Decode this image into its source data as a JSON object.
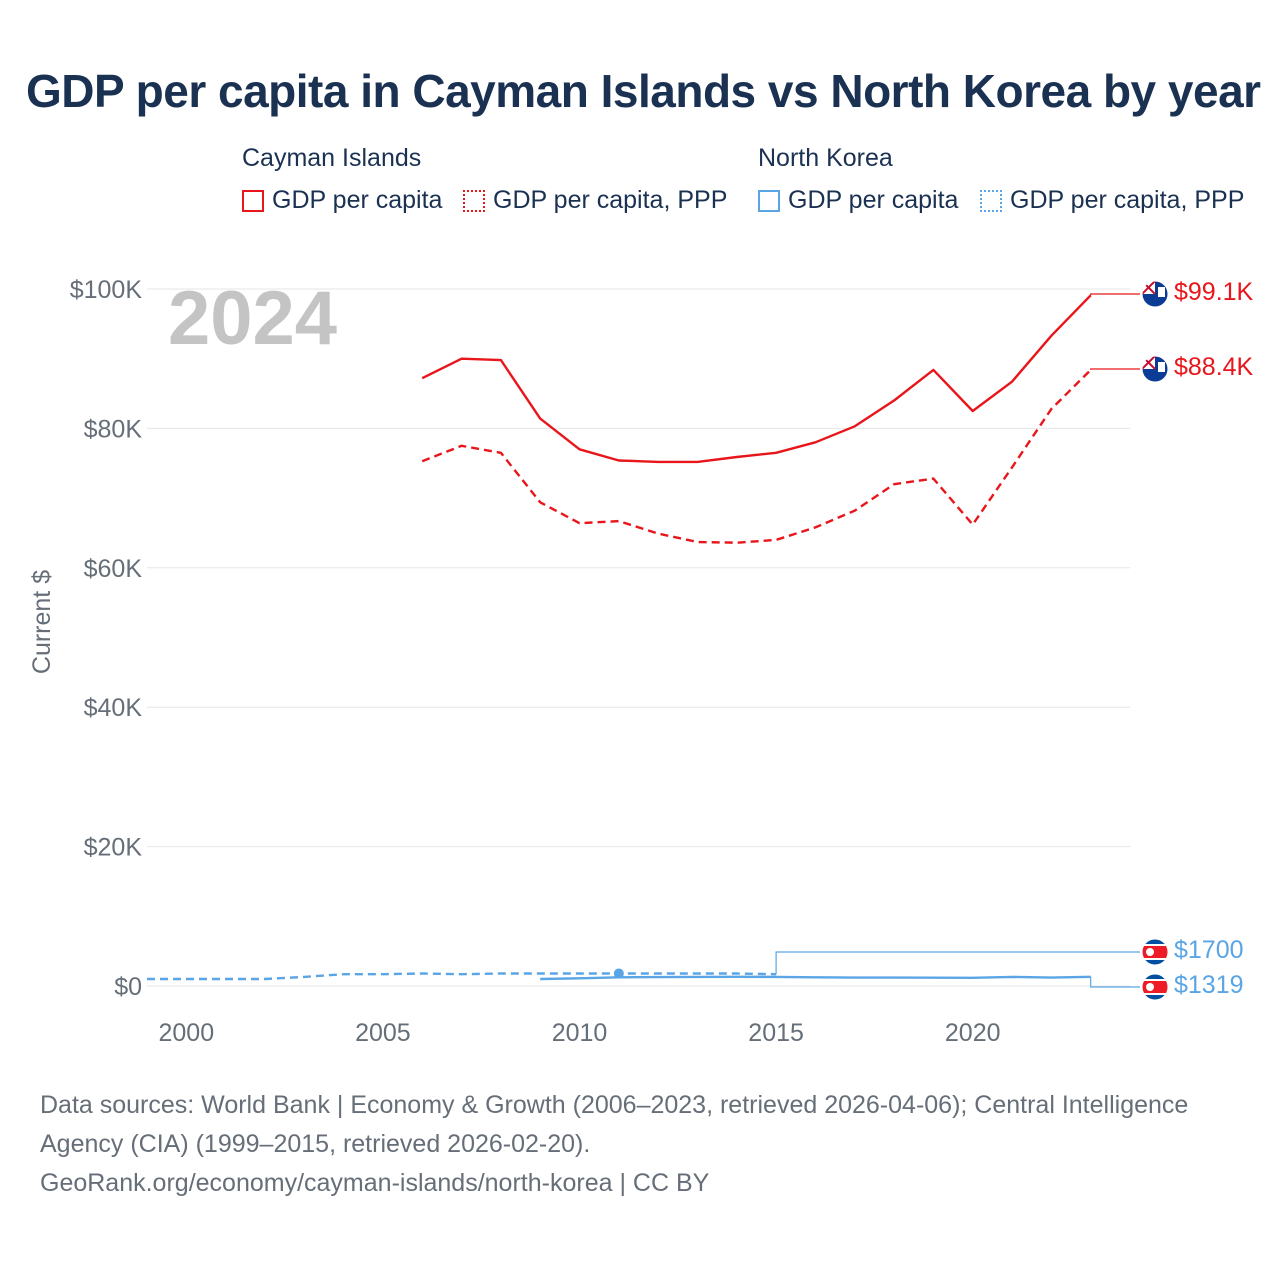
{
  "chart_data": {
    "type": "line",
    "title": "GDP per capita in Cayman Islands vs North Korea by year",
    "year_label": "2024",
    "ylabel": "Current $",
    "xlim": [
      1999,
      2024
    ],
    "ylim": [
      0,
      100000
    ],
    "x_ticks": [
      2000,
      2005,
      2010,
      2015,
      2020
    ],
    "y_ticks": [
      {
        "value": 0,
        "label": "$0"
      },
      {
        "value": 20000,
        "label": "$20K"
      },
      {
        "value": 40000,
        "label": "$40K"
      },
      {
        "value": 60000,
        "label": "$60K"
      },
      {
        "value": 80000,
        "label": "$80K"
      },
      {
        "value": 100000,
        "label": "$100K"
      }
    ],
    "legend": {
      "groups": [
        {
          "country": "Cayman Islands",
          "items": [
            "GDP per capita",
            "GDP per capita, PPP"
          ]
        },
        {
          "country": "North Korea",
          "items": [
            "GDP per capita",
            "GDP per capita, PPP"
          ]
        }
      ]
    },
    "series": [
      {
        "name": "Cayman Islands GDP per capita",
        "color": "#e8161b",
        "dash": false,
        "end_label": "$99.1K",
        "end_value": 99100,
        "points": [
          [
            2006,
            87200
          ],
          [
            2007,
            90000
          ],
          [
            2008,
            89800
          ],
          [
            2009,
            81400
          ],
          [
            2010,
            77000
          ],
          [
            2011,
            75400
          ],
          [
            2012,
            75200
          ],
          [
            2013,
            75200
          ],
          [
            2014,
            75900
          ],
          [
            2015,
            76500
          ],
          [
            2016,
            78000
          ],
          [
            2017,
            80300
          ],
          [
            2018,
            84000
          ],
          [
            2019,
            88400
          ],
          [
            2020,
            82500
          ],
          [
            2021,
            86700
          ],
          [
            2022,
            93300
          ],
          [
            2023,
            99100
          ]
        ]
      },
      {
        "name": "Cayman Islands GDP per capita, PPP",
        "color": "#e8161b",
        "dash": true,
        "end_label": "$88.4K",
        "end_value": 88400,
        "points": [
          [
            2006,
            75300
          ],
          [
            2007,
            77500
          ],
          [
            2008,
            76500
          ],
          [
            2009,
            69400
          ],
          [
            2010,
            66400
          ],
          [
            2011,
            66700
          ],
          [
            2012,
            64900
          ],
          [
            2013,
            63700
          ],
          [
            2014,
            63600
          ],
          [
            2015,
            64000
          ],
          [
            2016,
            65800
          ],
          [
            2017,
            68200
          ],
          [
            2018,
            72000
          ],
          [
            2019,
            72800
          ],
          [
            2020,
            66200
          ],
          [
            2021,
            74400
          ],
          [
            2022,
            82800
          ],
          [
            2023,
            88400
          ]
        ]
      },
      {
        "name": "North Korea GDP per capita",
        "color": "#5aa5e6",
        "dash": false,
        "end_label": "$1319",
        "end_value": 1319,
        "points": [
          [
            2009,
            1000
          ],
          [
            2010,
            1100
          ],
          [
            2011,
            1250
          ],
          [
            2012,
            1270
          ],
          [
            2013,
            1300
          ],
          [
            2014,
            1320
          ],
          [
            2015,
            1300
          ],
          [
            2016,
            1250
          ],
          [
            2017,
            1200
          ],
          [
            2018,
            1200
          ],
          [
            2019,
            1190
          ],
          [
            2020,
            1180
          ],
          [
            2021,
            1310
          ],
          [
            2022,
            1200
          ],
          [
            2023,
            1319
          ]
        ]
      },
      {
        "name": "North Korea GDP per capita, PPP",
        "color": "#5aa5e6",
        "dash": true,
        "end_label": "$1700",
        "end_value": 1700,
        "marker_year": 2011,
        "marker_value": 1800,
        "points": [
          [
            1999,
            1000
          ],
          [
            2000,
            1000
          ],
          [
            2001,
            1000
          ],
          [
            2002,
            1000
          ],
          [
            2003,
            1300
          ],
          [
            2004,
            1700
          ],
          [
            2005,
            1700
          ],
          [
            2006,
            1800
          ],
          [
            2007,
            1700
          ],
          [
            2008,
            1800
          ],
          [
            2009,
            1800
          ],
          [
            2010,
            1800
          ],
          [
            2011,
            1800
          ],
          [
            2012,
            1800
          ],
          [
            2013,
            1800
          ],
          [
            2014,
            1800
          ],
          [
            2015,
            1700
          ]
        ]
      }
    ]
  },
  "footer": {
    "sources": "Data sources: World Bank | Economy & Growth (2006–2023, retrieved 2026-04-06); Central Intelligence Agency (CIA) (1999–2015, retrieved 2026-02-20).",
    "url": "GeoRank.org/economy/cayman-islands/north-korea | CC BY"
  }
}
